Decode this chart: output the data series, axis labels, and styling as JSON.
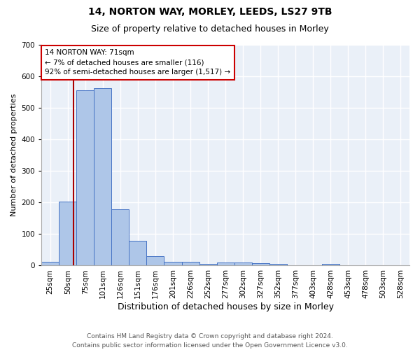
{
  "title1": "14, NORTON WAY, MORLEY, LEEDS, LS27 9TB",
  "title2": "Size of property relative to detached houses in Morley",
  "xlabel": "Distribution of detached houses by size in Morley",
  "ylabel": "Number of detached properties",
  "categories": [
    "25sqm",
    "50sqm",
    "75sqm",
    "101sqm",
    "126sqm",
    "151sqm",
    "176sqm",
    "201sqm",
    "226sqm",
    "252sqm",
    "277sqm",
    "302sqm",
    "327sqm",
    "352sqm",
    "377sqm",
    "403sqm",
    "428sqm",
    "453sqm",
    "478sqm",
    "503sqm",
    "528sqm"
  ],
  "values": [
    12,
    204,
    556,
    563,
    178,
    79,
    29,
    13,
    13,
    6,
    11,
    10,
    7,
    5,
    0,
    0,
    5,
    0,
    0,
    0,
    0
  ],
  "bar_color": "#aec6e8",
  "bar_edge_color": "#4472c4",
  "bg_color": "#eaf0f8",
  "grid_color": "#ffffff",
  "marker_color": "#aa0000",
  "annotation_text": "14 NORTON WAY: 71sqm\n← 7% of detached houses are smaller (116)\n92% of semi-detached houses are larger (1,517) →",
  "annotation_box_color": "#ffffff",
  "annotation_box_edge": "#cc0000",
  "footer": "Contains HM Land Registry data © Crown copyright and database right 2024.\nContains public sector information licensed under the Open Government Licence v3.0.",
  "ylim": [
    0,
    700
  ],
  "yticks": [
    0,
    100,
    200,
    300,
    400,
    500,
    600,
    700
  ],
  "title1_fontsize": 10,
  "title2_fontsize": 9,
  "xlabel_fontsize": 9,
  "ylabel_fontsize": 8,
  "tick_fontsize": 7.5,
  "footer_fontsize": 6.5,
  "annotation_fontsize": 7.5
}
